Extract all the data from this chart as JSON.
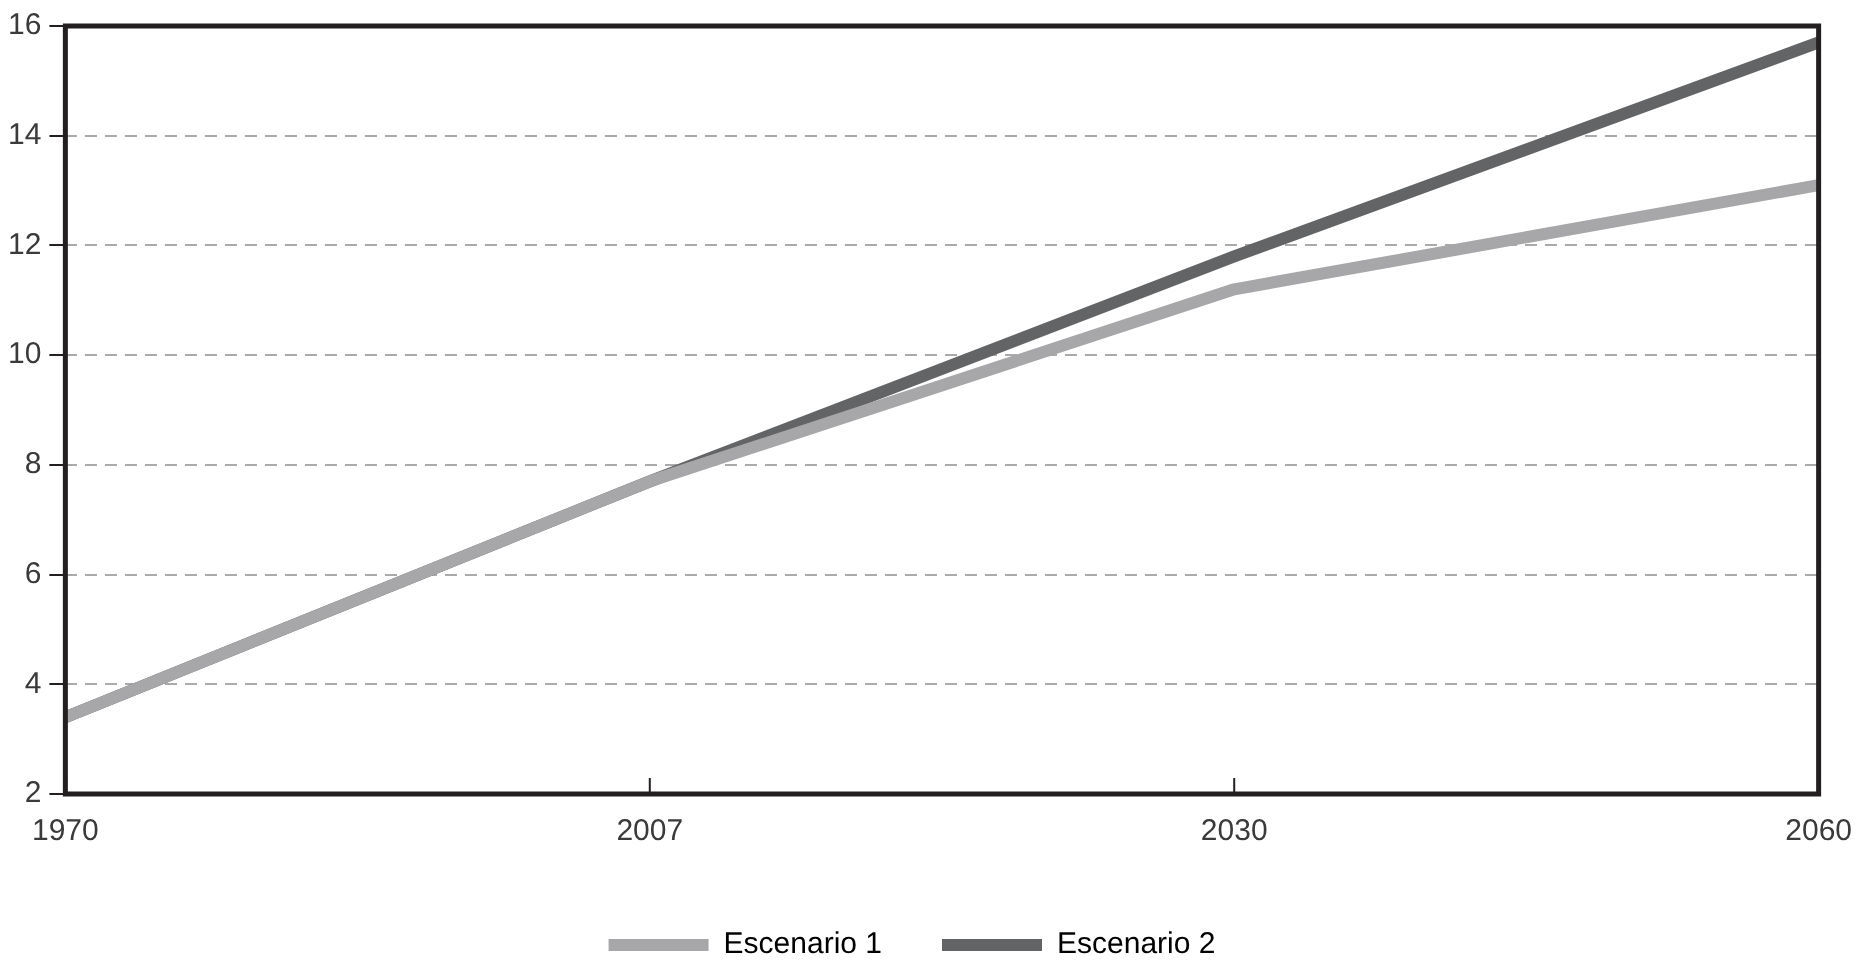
{
  "chart_data": {
    "type": "line",
    "categories": [
      "1970",
      "2007",
      "2030",
      "2060"
    ],
    "series": [
      {
        "name": "Escenario 1",
        "color": "#a7a7a9",
        "values": [
          3.4,
          7.7,
          11.2,
          13.1
        ]
      },
      {
        "name": "Escenario 2",
        "color": "#636466",
        "values": [
          3.4,
          7.7,
          11.8,
          15.7
        ]
      }
    ],
    "ylim": [
      2,
      16
    ],
    "yticks": [
      2,
      4,
      6,
      8,
      10,
      12,
      14,
      16
    ],
    "grid": "y",
    "legend": "bottom",
    "marker": "none",
    "line_style": "solid"
  }
}
